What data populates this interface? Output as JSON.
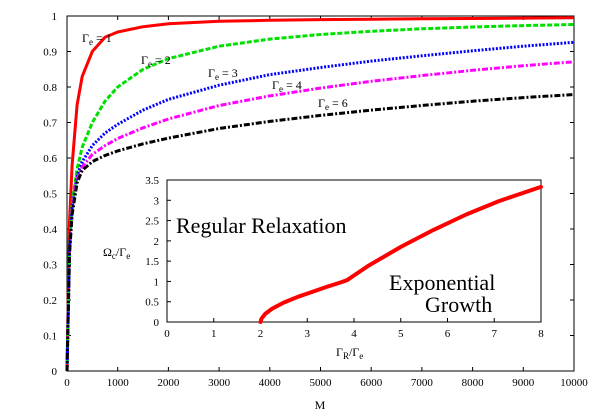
{
  "chart_data": [
    {
      "type": "line",
      "title": "",
      "xlabel": "M",
      "ylabel": "",
      "xlim": [
        0,
        10000
      ],
      "ylim": [
        0,
        1
      ],
      "xticks": [
        "0",
        "1000",
        "2000",
        "3000",
        "4000",
        "5000",
        "6000",
        "7000",
        "8000",
        "9000",
        "10000"
      ],
      "yticks": [
        "0",
        "0.1",
        "0.2",
        "0.3",
        "0.4",
        "0.5",
        "0.6",
        "0.7",
        "0.8",
        "0.9",
        "1"
      ],
      "grid": false,
      "x": [
        0,
        50,
        100,
        200,
        300,
        500,
        750,
        1000,
        1500,
        2000,
        3000,
        4000,
        5000,
        6000,
        7000,
        8000,
        9000,
        10000
      ],
      "series": [
        {
          "name": "Γe = 1",
          "color": "#ff0000",
          "style": "solid",
          "values": [
            0,
            0.42,
            0.58,
            0.75,
            0.83,
            0.9,
            0.94,
            0.955,
            0.97,
            0.978,
            0.985,
            0.988,
            0.99,
            0.991,
            0.992,
            0.993,
            0.994,
            0.995
          ]
        },
        {
          "name": "Γe = 2",
          "color": "#00e000",
          "style": "dashed",
          "values": [
            0,
            0.35,
            0.47,
            0.57,
            0.63,
            0.7,
            0.76,
            0.8,
            0.85,
            0.88,
            0.915,
            0.935,
            0.948,
            0.957,
            0.964,
            0.969,
            0.973,
            0.976
          ]
        },
        {
          "name": "Γe = 3",
          "color": "#0000ff",
          "style": "dotted",
          "values": [
            0,
            0.34,
            0.46,
            0.55,
            0.59,
            0.635,
            0.67,
            0.695,
            0.735,
            0.765,
            0.805,
            0.835,
            0.855,
            0.873,
            0.888,
            0.902,
            0.915,
            0.926
          ]
        },
        {
          "name": "Γe = 4",
          "color": "#ff00ff",
          "style": "dashdot",
          "values": [
            0,
            0.33,
            0.45,
            0.54,
            0.575,
            0.61,
            0.635,
            0.655,
            0.685,
            0.71,
            0.748,
            0.775,
            0.797,
            0.816,
            0.832,
            0.847,
            0.86,
            0.871
          ]
        },
        {
          "name": "Γe = 6",
          "color": "#000000",
          "style": "dashdot",
          "values": [
            0,
            0.33,
            0.44,
            0.53,
            0.565,
            0.59,
            0.607,
            0.62,
            0.64,
            0.656,
            0.683,
            0.703,
            0.72,
            0.735,
            0.748,
            0.76,
            0.77,
            0.779
          ]
        }
      ],
      "annotations": [
        {
          "base": "Γ",
          "sub": "e",
          "rest": " = 1"
        },
        {
          "base": "Γ",
          "sub": "e",
          "rest": " = 2"
        },
        {
          "base": "Γ",
          "sub": "e",
          "rest": " = 3"
        },
        {
          "base": "Γ",
          "sub": "e",
          "rest": " = 4"
        },
        {
          "base": "Γ",
          "sub": "e",
          "rest": " = 6"
        }
      ]
    },
    {
      "type": "line",
      "title": "",
      "xlabel": {
        "base": "Γ",
        "sub1": "R",
        "mid": "/Γ",
        "sub2": "e"
      },
      "ylabel": {
        "base": "Ω",
        "sub1": "c",
        "mid": "/Γ",
        "sub2": "e"
      },
      "xlim": [
        0,
        8
      ],
      "ylim": [
        0,
        3.5
      ],
      "xticks": [
        "0",
        "1",
        "2",
        "3",
        "4",
        "5",
        "6",
        "7",
        "8"
      ],
      "yticks": [
        "0",
        "0.5",
        "1",
        "1.5",
        "2",
        "2.5",
        "3",
        "3.5"
      ],
      "grid": false,
      "series": [
        {
          "name": "",
          "color": "#ff0000",
          "style": "solid",
          "x": [
            2.0,
            2.02,
            2.1,
            2.25,
            2.5,
            2.8,
            3.1,
            3.4,
            3.7,
            3.85,
            4.3,
            5.0,
            5.7,
            6.4,
            7.1,
            8.0
          ],
          "values": [
            0,
            0.08,
            0.2,
            0.33,
            0.48,
            0.62,
            0.74,
            0.86,
            0.97,
            1.03,
            1.38,
            1.85,
            2.27,
            2.65,
            2.98,
            3.33
          ]
        }
      ],
      "region_labels": [
        "Regular Relaxation",
        "Exponential",
        "Growth"
      ]
    }
  ]
}
